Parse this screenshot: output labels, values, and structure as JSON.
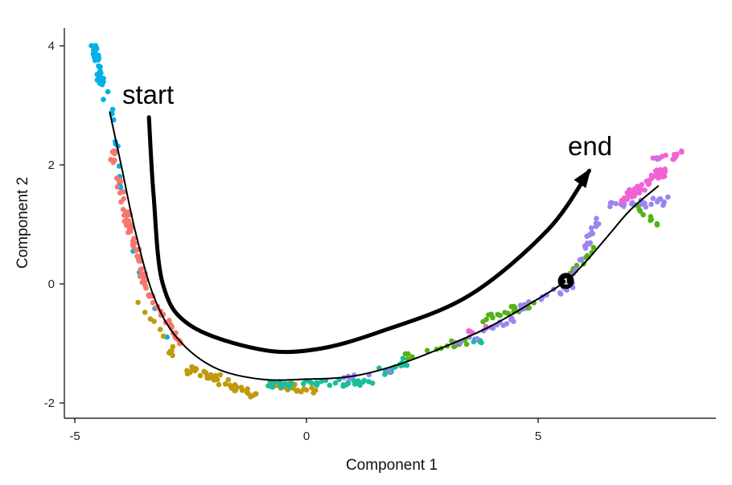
{
  "chart_data": {
    "type": "scatter",
    "title": "",
    "xlabel": "Component 1",
    "ylabel": "Component 2",
    "xlim": [
      -5.2,
      8.8
    ],
    "ylim": [
      -2.2,
      4.2
    ],
    "xticks": [
      -5,
      0,
      5
    ],
    "yticks": [
      -2,
      0,
      2,
      4
    ],
    "grid": false,
    "legend": "none",
    "series": [
      {
        "color": "#00B0E6",
        "segments": [
          [
            -4.6,
            4.0,
            -4.3,
            3.1,
            40,
            0.12
          ],
          [
            -4.2,
            3.0,
            -4.0,
            1.5,
            12,
            0.05
          ],
          [
            -3.8,
            0.6,
            -3.0,
            -0.9,
            6,
            0.05
          ]
        ]
      },
      {
        "color": "#F8766D",
        "segments": [
          [
            -4.2,
            2.2,
            -3.5,
            0.0,
            60,
            0.12
          ],
          [
            -3.5,
            0.0,
            -2.7,
            -1.0,
            25,
            0.1
          ]
        ]
      },
      {
        "color": "#C09A0B",
        "segments": [
          [
            -3.6,
            -0.3,
            -2.9,
            -1.2,
            12,
            0.1
          ],
          [
            -2.6,
            -1.4,
            -1.0,
            -1.9,
            45,
            0.12
          ],
          [
            -0.8,
            -1.7,
            0.2,
            -1.8,
            20,
            0.1
          ]
        ]
      },
      {
        "color": "#1BBD9C",
        "segments": [
          [
            -1.0,
            -1.7,
            1.4,
            -1.65,
            45,
            0.1
          ],
          [
            1.6,
            -1.5,
            2.3,
            -1.3,
            20,
            0.1
          ],
          [
            3.5,
            -0.9,
            3.9,
            -1.0,
            6,
            0.1
          ]
        ]
      },
      {
        "color": "#52B415",
        "segments": [
          [
            2.1,
            -1.25,
            3.5,
            -0.95,
            15,
            0.1
          ],
          [
            3.8,
            -0.6,
            5.0,
            -0.3,
            22,
            0.1
          ],
          [
            5.5,
            -0.1,
            6.2,
            0.6,
            22,
            0.1
          ],
          [
            7.1,
            1.3,
            7.6,
            1.0,
            10,
            0.08
          ]
        ]
      },
      {
        "color": "#9B85EF",
        "segments": [
          [
            0.8,
            -1.6,
            2.2,
            -1.4,
            6,
            0.1
          ],
          [
            3.1,
            -1.0,
            4.5,
            -0.6,
            15,
            0.1
          ],
          [
            4.6,
            -0.4,
            5.8,
            0.0,
            20,
            0.1
          ],
          [
            5.7,
            0.1,
            6.3,
            1.1,
            22,
            0.1
          ],
          [
            6.5,
            1.3,
            7.8,
            1.4,
            25,
            0.12
          ],
          [
            7.5,
            2.1,
            8.2,
            2.1,
            5,
            0.1
          ]
        ]
      },
      {
        "color": "#F261D5",
        "segments": [
          [
            6.8,
            1.4,
            7.7,
            1.9,
            50,
            0.15
          ],
          [
            7.5,
            2.1,
            8.3,
            2.2,
            10,
            0.08
          ],
          [
            2.9,
            -1.0,
            4.3,
            -0.6,
            5,
            0.08
          ]
        ]
      }
    ],
    "trajectory": [
      [
        -4.25,
        2.9
      ],
      [
        -4.0,
        2.0
      ],
      [
        -3.7,
        0.9
      ],
      [
        -3.3,
        -0.2
      ],
      [
        -2.8,
        -0.9
      ],
      [
        -2.0,
        -1.4
      ],
      [
        -1.0,
        -1.6
      ],
      [
        0.0,
        -1.6
      ],
      [
        1.0,
        -1.55
      ],
      [
        2.0,
        -1.35
      ],
      [
        3.0,
        -1.05
      ],
      [
        4.0,
        -0.7
      ],
      [
        5.0,
        -0.25
      ],
      [
        5.6,
        0.05
      ],
      [
        6.0,
        0.35
      ],
      [
        6.5,
        0.8
      ],
      [
        7.0,
        1.25
      ],
      [
        7.6,
        1.65
      ]
    ],
    "branch_point": {
      "x": 5.6,
      "y": 0.05,
      "label": "1"
    },
    "annotations": {
      "start": "start",
      "end": "end",
      "arrow_path": [
        [
          -3.4,
          2.8
        ],
        [
          -3.3,
          1.5
        ],
        [
          -3.1,
          0.0
        ],
        [
          -2.5,
          -0.7
        ],
        [
          -1.0,
          -1.1
        ],
        [
          0.2,
          -1.1
        ],
        [
          1.6,
          -0.8
        ],
        [
          3.5,
          -0.2
        ],
        [
          5.2,
          0.9
        ],
        [
          6.1,
          1.9
        ]
      ]
    }
  }
}
